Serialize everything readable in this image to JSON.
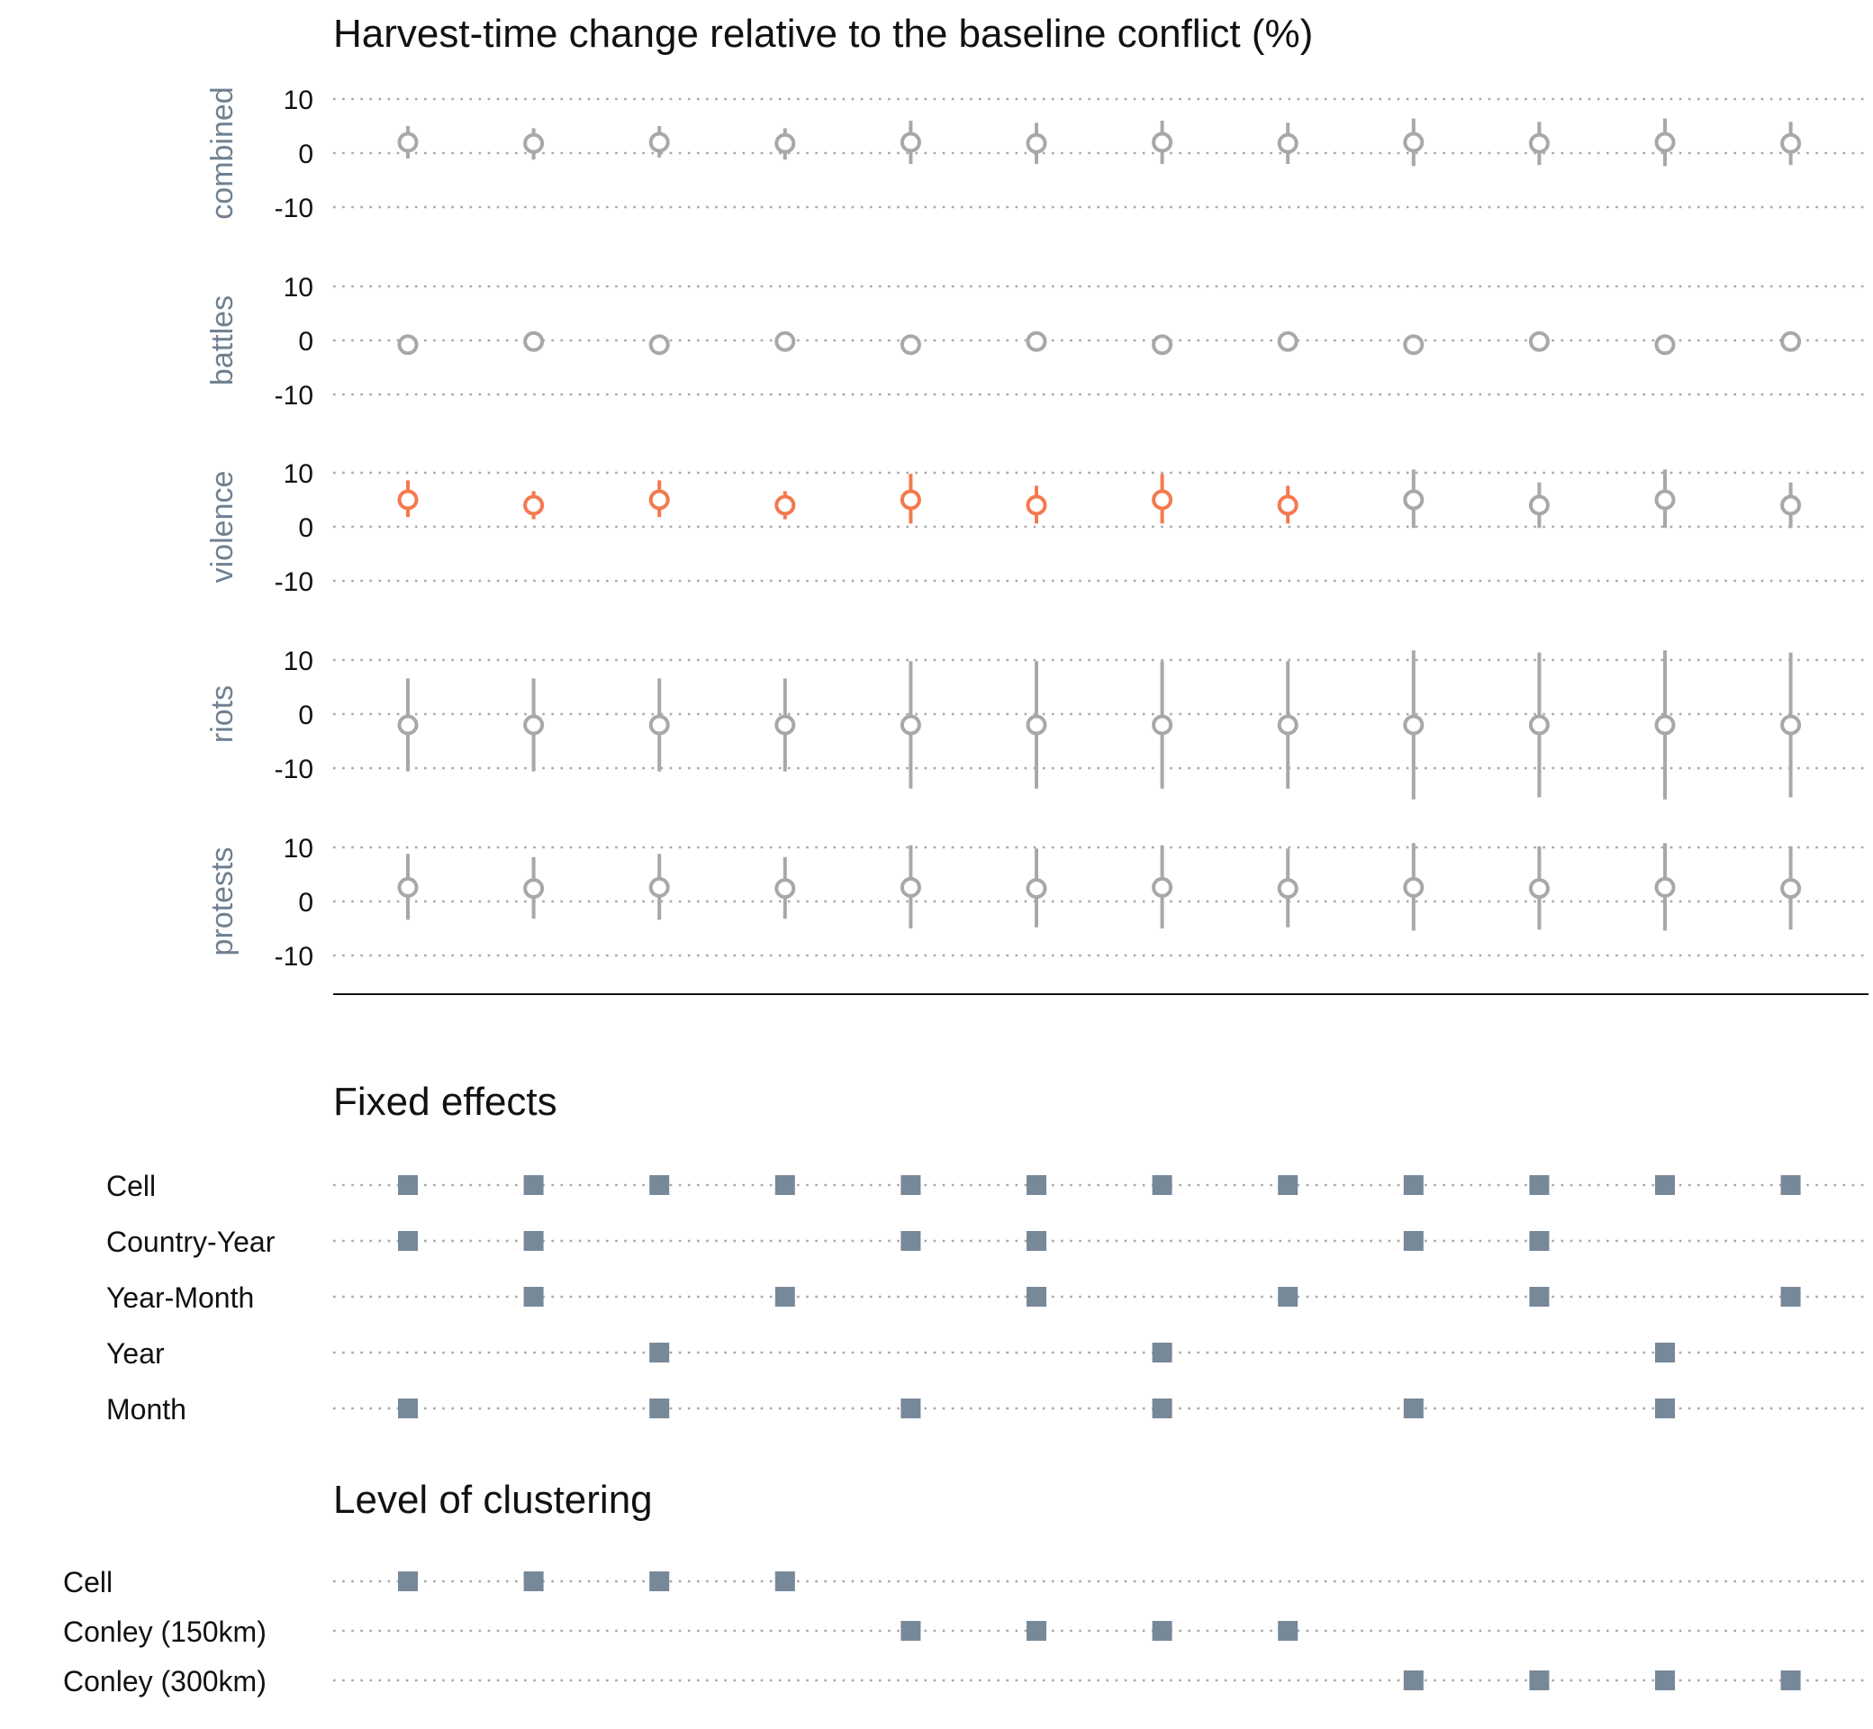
{
  "colors": {
    "significant": "#F4794E",
    "insignificant": "#A8A8A8",
    "marker": "#778899",
    "panel_label": "#708090"
  },
  "chart_data": {
    "type": "scatter",
    "title": "Harvest-time change relative to the baseline conflict (%)",
    "yticks": [
      10,
      0,
      -10
    ],
    "ytick_labels": [
      "10",
      "0",
      "-10"
    ],
    "ylim": [
      -12,
      12
    ],
    "n_specifications": 12,
    "panels": [
      {
        "label": "combined",
        "estimates": [
          {
            "est": 2.0,
            "lo": -1.0,
            "hi": 5.0,
            "sig": false
          },
          {
            "est": 1.8,
            "lo": -1.2,
            "hi": 4.6,
            "sig": false
          },
          {
            "est": 2.0,
            "lo": -0.8,
            "hi": 5.0,
            "sig": false
          },
          {
            "est": 1.8,
            "lo": -1.2,
            "hi": 4.6,
            "sig": false
          },
          {
            "est": 2.0,
            "lo": -2.0,
            "hi": 6.0,
            "sig": false
          },
          {
            "est": 1.8,
            "lo": -2.0,
            "hi": 5.6,
            "sig": false
          },
          {
            "est": 2.0,
            "lo": -2.0,
            "hi": 6.0,
            "sig": false
          },
          {
            "est": 1.8,
            "lo": -2.0,
            "hi": 5.6,
            "sig": false
          },
          {
            "est": 2.0,
            "lo": -2.4,
            "hi": 6.4,
            "sig": false
          },
          {
            "est": 1.8,
            "lo": -2.2,
            "hi": 5.8,
            "sig": false
          },
          {
            "est": 2.0,
            "lo": -2.4,
            "hi": 6.4,
            "sig": false
          },
          {
            "est": 1.8,
            "lo": -2.2,
            "hi": 5.8,
            "sig": false
          }
        ]
      },
      {
        "label": "battles",
        "estimates": [
          {
            "est": -0.8,
            "lo": -2.4,
            "hi": 0.8,
            "sig": false
          },
          {
            "est": -0.2,
            "lo": -1.6,
            "hi": 1.2,
            "sig": false
          },
          {
            "est": -0.8,
            "lo": -2.4,
            "hi": 0.8,
            "sig": false
          },
          {
            "est": -0.2,
            "lo": -1.6,
            "hi": 1.2,
            "sig": false
          },
          {
            "est": -0.8,
            "lo": -1.8,
            "hi": 0.2,
            "sig": false
          },
          {
            "est": -0.2,
            "lo": -1.2,
            "hi": 0.8,
            "sig": false
          },
          {
            "est": -0.8,
            "lo": -1.8,
            "hi": 0.2,
            "sig": false
          },
          {
            "est": -0.2,
            "lo": -1.2,
            "hi": 0.8,
            "sig": false
          },
          {
            "est": -0.8,
            "lo": -1.8,
            "hi": 0.2,
            "sig": false
          },
          {
            "est": -0.2,
            "lo": -1.2,
            "hi": 0.8,
            "sig": false
          },
          {
            "est": -0.8,
            "lo": -1.8,
            "hi": 0.2,
            "sig": false
          },
          {
            "est": -0.2,
            "lo": -1.2,
            "hi": 0.8,
            "sig": false
          }
        ]
      },
      {
        "label": "violence",
        "estimates": [
          {
            "est": 5.0,
            "lo": 1.8,
            "hi": 8.6,
            "sig": true
          },
          {
            "est": 4.0,
            "lo": 1.4,
            "hi": 6.6,
            "sig": true
          },
          {
            "est": 5.0,
            "lo": 1.8,
            "hi": 8.6,
            "sig": true
          },
          {
            "est": 4.0,
            "lo": 1.4,
            "hi": 6.6,
            "sig": true
          },
          {
            "est": 5.0,
            "lo": 0.6,
            "hi": 9.8,
            "sig": true
          },
          {
            "est": 4.0,
            "lo": 0.6,
            "hi": 7.6,
            "sig": true
          },
          {
            "est": 5.0,
            "lo": 0.6,
            "hi": 9.8,
            "sig": true
          },
          {
            "est": 4.0,
            "lo": 0.6,
            "hi": 7.6,
            "sig": true
          },
          {
            "est": 5.0,
            "lo": -0.2,
            "hi": 10.6,
            "sig": false
          },
          {
            "est": 4.0,
            "lo": -0.2,
            "hi": 8.2,
            "sig": false
          },
          {
            "est": 5.0,
            "lo": -0.2,
            "hi": 10.6,
            "sig": false
          },
          {
            "est": 4.0,
            "lo": -0.2,
            "hi": 8.2,
            "sig": false
          }
        ]
      },
      {
        "label": "riots",
        "estimates": [
          {
            "est": -2.0,
            "lo": -10.6,
            "hi": 6.6,
            "sig": false
          },
          {
            "est": -2.0,
            "lo": -10.6,
            "hi": 6.6,
            "sig": false
          },
          {
            "est": -2.0,
            "lo": -10.6,
            "hi": 6.6,
            "sig": false
          },
          {
            "est": -2.0,
            "lo": -10.6,
            "hi": 6.6,
            "sig": false
          },
          {
            "est": -2.0,
            "lo": -13.8,
            "hi": 9.8,
            "sig": false
          },
          {
            "est": -2.0,
            "lo": -13.8,
            "hi": 9.8,
            "sig": false
          },
          {
            "est": -2.0,
            "lo": -13.8,
            "hi": 9.8,
            "sig": false
          },
          {
            "est": -2.0,
            "lo": -13.8,
            "hi": 9.8,
            "sig": false
          },
          {
            "est": -2.0,
            "lo": -15.8,
            "hi": 11.8,
            "sig": false
          },
          {
            "est": -2.0,
            "lo": -15.4,
            "hi": 11.4,
            "sig": false
          },
          {
            "est": -2.0,
            "lo": -15.8,
            "hi": 11.8,
            "sig": false
          },
          {
            "est": -2.0,
            "lo": -15.4,
            "hi": 11.4,
            "sig": false
          }
        ]
      },
      {
        "label": "protests",
        "estimates": [
          {
            "est": 2.6,
            "lo": -3.4,
            "hi": 8.8,
            "sig": false
          },
          {
            "est": 2.4,
            "lo": -3.2,
            "hi": 8.2,
            "sig": false
          },
          {
            "est": 2.6,
            "lo": -3.4,
            "hi": 8.8,
            "sig": false
          },
          {
            "est": 2.4,
            "lo": -3.2,
            "hi": 8.2,
            "sig": false
          },
          {
            "est": 2.6,
            "lo": -5.0,
            "hi": 10.4,
            "sig": false
          },
          {
            "est": 2.4,
            "lo": -4.8,
            "hi": 9.8,
            "sig": false
          },
          {
            "est": 2.6,
            "lo": -5.0,
            "hi": 10.4,
            "sig": false
          },
          {
            "est": 2.4,
            "lo": -4.8,
            "hi": 9.8,
            "sig": false
          },
          {
            "est": 2.6,
            "lo": -5.4,
            "hi": 10.8,
            "sig": false
          },
          {
            "est": 2.4,
            "lo": -5.2,
            "hi": 10.2,
            "sig": false
          },
          {
            "est": 2.6,
            "lo": -5.4,
            "hi": 10.8,
            "sig": false
          },
          {
            "est": 2.4,
            "lo": -5.2,
            "hi": 10.2,
            "sig": false
          }
        ]
      }
    ]
  },
  "fixed_effects": {
    "title": "Fixed effects",
    "rows": [
      {
        "label": "Cell",
        "on": [
          1,
          1,
          1,
          1,
          1,
          1,
          1,
          1,
          1,
          1,
          1,
          1
        ]
      },
      {
        "label": "Country-Year",
        "on": [
          1,
          1,
          0,
          0,
          1,
          1,
          0,
          0,
          1,
          1,
          0,
          0
        ]
      },
      {
        "label": "Year-Month",
        "on": [
          0,
          1,
          0,
          1,
          0,
          1,
          0,
          1,
          0,
          1,
          0,
          1
        ]
      },
      {
        "label": "Year",
        "on": [
          0,
          0,
          1,
          0,
          0,
          0,
          1,
          0,
          0,
          0,
          1,
          0
        ]
      },
      {
        "label": "Month",
        "on": [
          1,
          0,
          1,
          0,
          1,
          0,
          1,
          0,
          1,
          0,
          1,
          0
        ]
      }
    ]
  },
  "clustering": {
    "title": "Level of clustering",
    "rows": [
      {
        "label": "Cell",
        "on": [
          1,
          1,
          1,
          1,
          0,
          0,
          0,
          0,
          0,
          0,
          0,
          0
        ]
      },
      {
        "label": "Conley (150km)",
        "on": [
          0,
          0,
          0,
          0,
          1,
          1,
          1,
          1,
          0,
          0,
          0,
          0
        ]
      },
      {
        "label": "Conley (300km)",
        "on": [
          0,
          0,
          0,
          0,
          0,
          0,
          0,
          0,
          1,
          1,
          1,
          1
        ]
      }
    ]
  }
}
